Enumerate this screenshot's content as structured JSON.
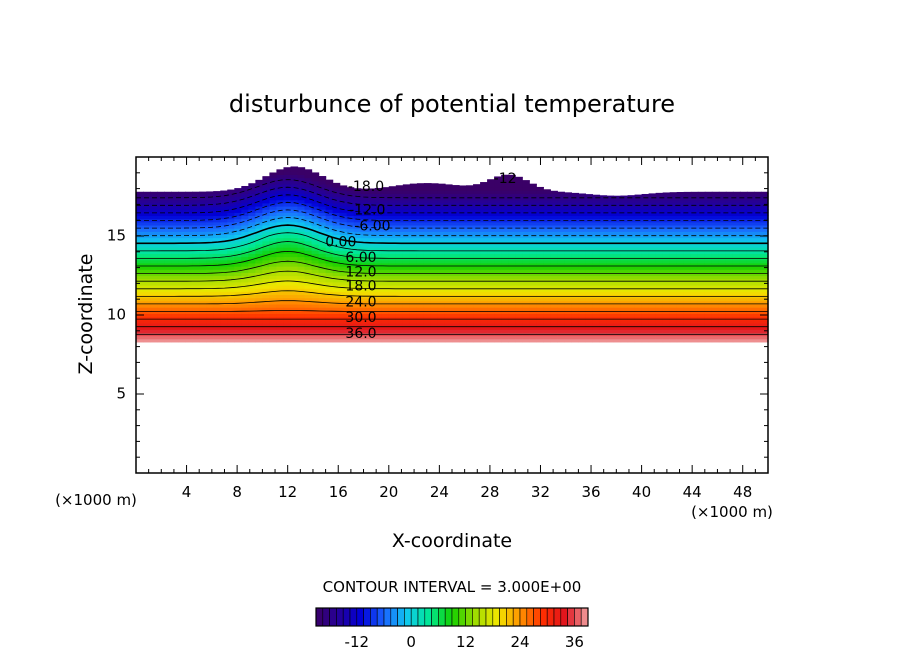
{
  "chart_data": {
    "type": "heatmap",
    "title": "disturbunce of potential temperature",
    "xlabel": "X-coordinate",
    "ylabel": "Z-coordinate",
    "x_unit": "(×1000 m)",
    "y_unit": "(×1000 m)",
    "xlim": [
      0,
      50
    ],
    "ylim": [
      0,
      20
    ],
    "x_ticks": [
      4,
      8,
      12,
      16,
      20,
      24,
      28,
      32,
      36,
      40,
      44,
      48
    ],
    "y_ticks": [
      5,
      10,
      15
    ],
    "contour_interval_label": "CONTOUR INTERVAL = 3.000E+00",
    "contour_labels": [
      {
        "text": "-18.0",
        "x": 18.2,
        "z": 18.1
      },
      {
        "text": "-12.0",
        "x": 18.3,
        "z": 16.6
      },
      {
        "text": "-6.00",
        "x": 18.7,
        "z": 15.6
      },
      {
        "text": "0.00",
        "x": 16.2,
        "z": 14.6
      },
      {
        "text": "6.00",
        "x": 17.8,
        "z": 13.6
      },
      {
        "text": "12.0",
        "x": 17.8,
        "z": 12.7
      },
      {
        "text": "18.0",
        "x": 17.8,
        "z": 11.8
      },
      {
        "text": "24.0",
        "x": 17.8,
        "z": 10.8
      },
      {
        "text": "30.0",
        "x": 17.8,
        "z": 9.8
      },
      {
        "text": "36.0",
        "x": 17.8,
        "z": 8.8
      },
      {
        "text": "-12",
        "x": 29.2,
        "z": 18.6
      }
    ],
    "colorbar": {
      "min": -21,
      "max": 39,
      "tick_values": [
        -12,
        0,
        12,
        24,
        36
      ],
      "tick_labels": [
        "-12",
        "0",
        "12",
        "24",
        "36"
      ]
    },
    "colormap": [
      "#3a0067",
      "#24009a",
      "#0000d8",
      "#1a64ff",
      "#10c8f0",
      "#00e894",
      "#14d000",
      "#9cdc00",
      "#f0e800",
      "#ff9400",
      "#ff2e00",
      "#e0141e",
      "#f0a0a0"
    ]
  }
}
